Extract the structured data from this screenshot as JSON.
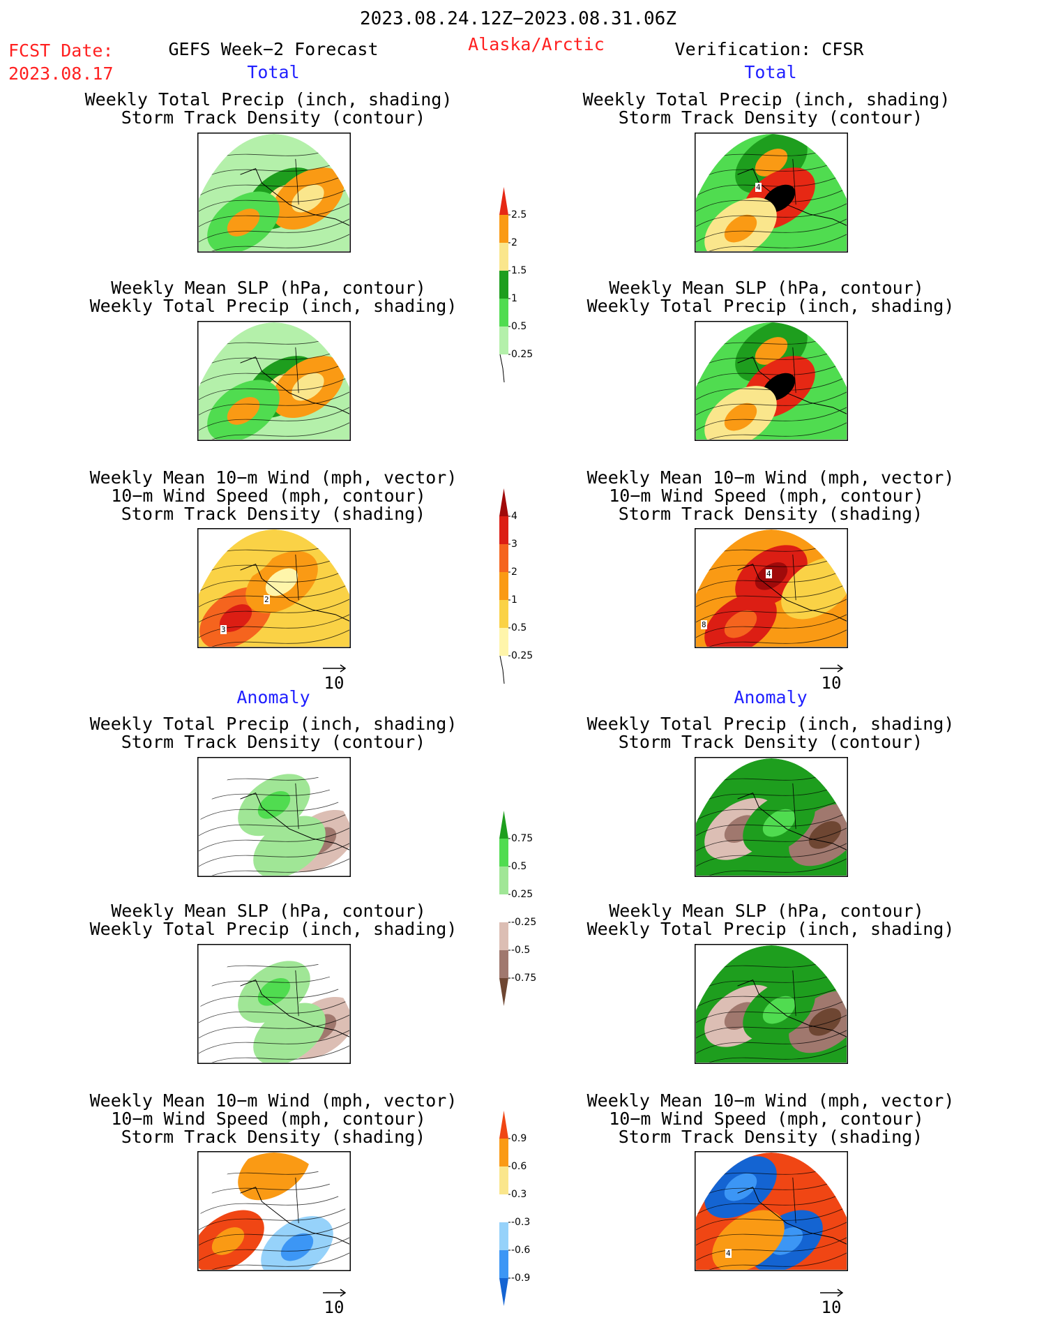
{
  "header": {
    "period": "2023.08.24.12Z−2023.08.31.06Z",
    "fcst_label": "FCST Date:",
    "fcst_date": "2023.08.17",
    "forecast_title": "GEFS Week−2 Forecast",
    "region": "Alaska/Arctic",
    "verification": "Verification: CFSR"
  },
  "columns": {
    "left_total": "Total",
    "right_total": "Total",
    "left_anomaly": "Anomaly",
    "right_anomaly": "Anomaly"
  },
  "titles": {
    "precip_track": [
      "Weekly Total Precip (inch, shading)",
      "Storm Track Density (contour)"
    ],
    "slp_precip": [
      "Weekly Mean SLP (hPa, contour)",
      "Weekly Total Precip (inch, shading)"
    ],
    "wind_track": [
      "Weekly Mean 10−m Wind (mph, vector)",
      "10−m Wind Speed (mph, contour)",
      "Storm Track Density (shading)"
    ]
  },
  "vector_reference": "10",
  "panel_labels": {
    "wind_total_forecast": [
      "2",
      "3"
    ],
    "track_total_verification": [
      "4"
    ],
    "wind_total_verification": [
      "4",
      "8"
    ],
    "wind_anomaly_verification": [
      "4"
    ]
  },
  "chart_data": [
    {
      "type": "heatmap",
      "name": "colorbar-total-precip",
      "levels": [
        "0.25",
        "0.5",
        "1",
        "1.5",
        "2",
        "2.5"
      ],
      "colors": [
        "#b4f0aa",
        "#50dc50",
        "#1e9e1e",
        "#fae68c",
        "#fa9a14",
        "#e62814"
      ]
    },
    {
      "type": "heatmap",
      "name": "colorbar-total-storm-track",
      "levels": [
        "0.25",
        "0.5",
        "1",
        "2",
        "3",
        "4"
      ],
      "colors": [
        "#fff5aa",
        "#fad246",
        "#fa9a14",
        "#f5641e",
        "#dc1e14",
        "#a00a0a"
      ]
    },
    {
      "type": "heatmap",
      "name": "colorbar-anomaly-precip",
      "levels": [
        "-0.75",
        "-0.5",
        "-0.25",
        "0.25",
        "0.5",
        "0.75"
      ],
      "colors": [
        "#6e4632",
        "#a0786e",
        "#dcbeb4",
        "#ffffff",
        "#a0e696",
        "#50dc50",
        "#1e9e1e"
      ]
    },
    {
      "type": "heatmap",
      "name": "colorbar-anomaly-storm-track",
      "levels": [
        "-0.9",
        "-0.6",
        "-0.3",
        "0.3",
        "0.6",
        "0.9"
      ],
      "colors": [
        "#1464d2",
        "#3c96f5",
        "#96d2fa",
        "#ffffff",
        "#fae68c",
        "#fa9a14",
        "#f04614"
      ]
    }
  ]
}
